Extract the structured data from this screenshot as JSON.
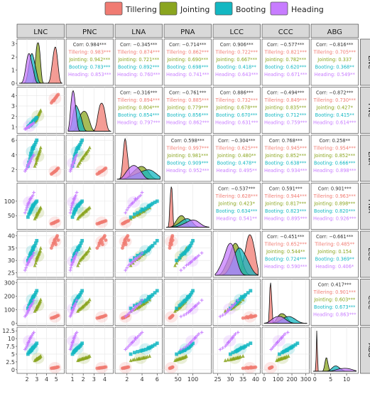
{
  "chart_data": {
    "type": "scatter-matrix",
    "variables": [
      "LNC",
      "PNC",
      "LNA",
      "PNA",
      "LCC",
      "CCC",
      "ABG"
    ],
    "legend": {
      "placement": "top",
      "entries": [
        {
          "name": "Tillering",
          "color": "#f07b72",
          "marker": "circle"
        },
        {
          "name": "Jointing",
          "color": "#8aa51f",
          "marker": "triangle"
        },
        {
          "name": "Booting",
          "color": "#13b7c2",
          "marker": "square"
        },
        {
          "name": "Heading",
          "color": "#c77cff",
          "marker": "plus"
        }
      ]
    },
    "axes": {
      "LNC": {
        "range": [
          1.2,
          5.6
        ],
        "ticks": [
          2,
          3,
          4,
          5
        ],
        "yticks": [
          0,
          1,
          2,
          3
        ]
      },
      "PNC": {
        "range": [
          0.6,
          4.6
        ],
        "ticks": [
          1,
          2,
          3,
          4
        ]
      },
      "LNA": {
        "range": [
          0.7,
          6.4
        ],
        "ticks": [
          2,
          4,
          6
        ]
      },
      "PNA": {
        "range": [
          10,
          155
        ],
        "ticks": [
          50,
          100
        ]
      },
      "LCC": {
        "range": [
          24,
          41
        ],
        "ticks": [
          25,
          30,
          35,
          40
        ]
      },
      "CCC": {
        "range": [
          0,
          310
        ],
        "ticks": [
          0,
          100,
          200,
          300
        ]
      },
      "ABG": {
        "range": [
          -0.5,
          13
        ],
        "ticks": [
          0,
          5,
          10
        ],
        "yticks": [
          0,
          2.5,
          5,
          7.5,
          10,
          12.5
        ]
      }
    },
    "groups": {
      "Tillering": {
        "LNC": [
          4.5,
          4.6,
          4.7,
          4.8,
          4.85,
          4.9,
          5.0,
          5.05,
          5.1,
          5.2,
          4.95,
          4.75
        ],
        "PNC": [
          3.3,
          3.45,
          3.55,
          3.6,
          3.7,
          3.75,
          3.85,
          3.95,
          4.0,
          4.1,
          3.8,
          3.5
        ],
        "LNA": [
          1.4,
          1.5,
          1.6,
          1.7,
          1.75,
          1.8,
          1.9,
          2.0,
          2.1,
          2.2,
          1.85,
          1.65
        ],
        "PNA": [
          22,
          23,
          25,
          26,
          27,
          28,
          29,
          30,
          31,
          32,
          28,
          24
        ],
        "LCC": [
          35,
          36,
          37,
          38,
          38.5,
          37.5,
          39,
          39.5,
          40,
          38.2,
          36.5,
          37
        ],
        "CCC": [
          38,
          40,
          42,
          45,
          46,
          48,
          50,
          52,
          55,
          57,
          47,
          41
        ],
        "ABG": [
          0.45,
          0.5,
          0.55,
          0.6,
          0.62,
          0.65,
          0.7,
          0.75,
          0.8,
          0.85,
          0.68,
          0.52
        ]
      },
      "Jointing": {
        "LNC": [
          2.8,
          2.9,
          2.95,
          3.0,
          3.05,
          3.1,
          3.15,
          3.2,
          3.25,
          3.3,
          3.35,
          3.4,
          3.0,
          3.2
        ],
        "PNC": [
          1.5,
          1.6,
          1.7,
          1.8,
          1.9,
          2.0,
          2.1,
          2.2,
          2.3,
          2.4,
          2.5,
          2.6,
          1.95,
          2.25
        ],
        "LNA": [
          2.5,
          2.8,
          3.0,
          3.3,
          3.5,
          3.7,
          3.9,
          4.1,
          4.3,
          4.5,
          4.7,
          5.0,
          3.6,
          4.2
        ],
        "PNA": [
          40,
          45,
          48,
          52,
          55,
          58,
          62,
          65,
          68,
          72,
          75,
          78,
          57,
          66
        ],
        "LCC": [
          28,
          29,
          30,
          30.5,
          31,
          31.5,
          32,
          32.5,
          33,
          33.5,
          34,
          35,
          31.2,
          32.8
        ],
        "CCC": [
          90,
          100,
          105,
          112,
          118,
          125,
          132,
          140,
          148,
          155,
          162,
          175,
          122,
          145
        ],
        "ABG": [
          3.0,
          3.2,
          3.3,
          3.4,
          3.5,
          3.6,
          3.7,
          3.8,
          3.9,
          4.0,
          4.2,
          4.4,
          3.55,
          3.85
        ]
      },
      "Booting": {
        "LNC": [
          2.1,
          2.2,
          2.3,
          2.35,
          2.4,
          2.5,
          2.55,
          2.6,
          2.7,
          2.8,
          2.9,
          3.0,
          2.45,
          2.65
        ],
        "PNC": [
          1.0,
          1.1,
          1.15,
          1.2,
          1.3,
          1.35,
          1.4,
          1.5,
          1.6,
          1.7,
          1.8,
          1.9,
          1.25,
          1.55
        ],
        "LNA": [
          2.5,
          3.0,
          3.4,
          3.8,
          4.2,
          4.5,
          4.8,
          5.0,
          5.2,
          5.4,
          5.7,
          6.0,
          4.0,
          4.9
        ],
        "PNA": [
          45,
          55,
          60,
          65,
          70,
          75,
          80,
          85,
          88,
          92,
          96,
          100,
          72,
          83
        ],
        "LCC": [
          30,
          31,
          32,
          32.5,
          33,
          33.5,
          34,
          35,
          35.5,
          36,
          37,
          38,
          32.8,
          34.5
        ],
        "CCC": [
          110,
          130,
          140,
          150,
          160,
          170,
          180,
          190,
          200,
          210,
          225,
          240,
          165,
          195
        ],
        "ABG": [
          5.0,
          5.5,
          5.8,
          6.0,
          6.3,
          6.5,
          6.8,
          7.0,
          7.3,
          7.6,
          8.0,
          8.5,
          6.2,
          7.1
        ]
      },
      "Heading": {
        "LNC": [
          1.8,
          1.9,
          2.0,
          2.05,
          2.1,
          2.2,
          2.25,
          2.3,
          2.4,
          2.5,
          2.6,
          2.7,
          2.15,
          2.35
        ],
        "PNC": [
          0.8,
          0.85,
          0.9,
          0.95,
          1.0,
          1.05,
          1.1,
          1.15,
          1.2,
          1.25,
          1.3,
          1.4,
          1.0,
          1.12
        ],
        "LNA": [
          1.8,
          2.0,
          2.2,
          2.4,
          2.6,
          2.8,
          3.0,
          3.2,
          3.4,
          3.6,
          3.8,
          4.0,
          2.7,
          3.1
        ],
        "PNA": [
          60,
          70,
          78,
          85,
          90,
          95,
          100,
          105,
          110,
          115,
          120,
          130,
          93,
          108
        ],
        "LCC": [
          26,
          27,
          28,
          28.5,
          29,
          29.5,
          30,
          30.5,
          31,
          31.5,
          32,
          33,
          29.2,
          30.8
        ],
        "CCC": [
          50,
          60,
          70,
          80,
          90,
          100,
          110,
          120,
          130,
          140,
          150,
          170,
          95,
          125
        ],
        "ABG": [
          6.5,
          7.0,
          7.5,
          8.0,
          8.5,
          9.0,
          9.5,
          10.0,
          10.5,
          11.0,
          11.5,
          12.0,
          8.8,
          10.2
        ]
      }
    },
    "correlations": [
      {
        "row": "LNC",
        "col": "PNC",
        "all": "0.984***",
        "Tillering": "0.983***",
        "Jointing": "0.942***",
        "Booting": "0.783***",
        "Heading": "0.853***"
      },
      {
        "row": "LNC",
        "col": "LNA",
        "all": "−0.345***",
        "Tillering": "0.874***",
        "Jointing": "0.721***",
        "Booting": "0.892***",
        "Heading": "0.760***"
      },
      {
        "row": "LNC",
        "col": "PNA",
        "all": "−0.714***",
        "Tillering": "0.862***",
        "Jointing": "0.690***",
        "Booting": "0.698***",
        "Heading": "0.741***"
      },
      {
        "row": "LNC",
        "col": "LCC",
        "all": "0.906***",
        "Tillering": "0.722***",
        "Jointing": "0.667***",
        "Booting": "0.418**",
        "Heading": "0.643***"
      },
      {
        "row": "LNC",
        "col": "CCC",
        "all": "−0.577***",
        "Tillering": "0.821***",
        "Jointing": "0.782***",
        "Booting": "0.620***",
        "Heading": "0.671***"
      },
      {
        "row": "LNC",
        "col": "ABG",
        "all": "−0.816***",
        "Tillering": "0.705***",
        "Jointing": "0.337",
        "Booting": "0.368**",
        "Heading": "0.549**"
      },
      {
        "row": "PNC",
        "col": "LNA",
        "all": "−0.316***",
        "Tillering": "0.894***",
        "Jointing": "0.804***",
        "Booting": "0.854***",
        "Heading": "0.797***"
      },
      {
        "row": "PNC",
        "col": "PNA",
        "all": "−0.761***",
        "Tillering": "0.885***",
        "Jointing": "0.779***",
        "Booting": "0.856***",
        "Heading": "0.862***"
      },
      {
        "row": "PNC",
        "col": "LCC",
        "all": "0.886***",
        "Tillering": "0.732***",
        "Jointing": "0.678***",
        "Booting": "0.670***",
        "Heading": "0.631***"
      },
      {
        "row": "PNC",
        "col": "CCC",
        "all": "−0.494***",
        "Tillering": "0.849***",
        "Jointing": "0.835***",
        "Booting": "0.712***",
        "Heading": "0.759***"
      },
      {
        "row": "PNC",
        "col": "ABG",
        "all": "−0.872***",
        "Tillering": "0.730***",
        "Jointing": "0.427*",
        "Booting": "0.415**",
        "Heading": "0.614***"
      },
      {
        "row": "LNA",
        "col": "PNA",
        "all": "0.598***",
        "Tillering": "0.997***",
        "Jointing": "0.981***",
        "Booting": "0.909***",
        "Heading": "0.952***"
      },
      {
        "row": "LNA",
        "col": "LCC",
        "all": "−0.304***",
        "Tillering": "0.625***",
        "Jointing": "0.480**",
        "Booting": "0.478**",
        "Heading": "0.495**"
      },
      {
        "row": "LNA",
        "col": "CCC",
        "all": "0.768***",
        "Tillering": "0.945***",
        "Jointing": "0.852***",
        "Booting": "0.638***",
        "Heading": "0.934***"
      },
      {
        "row": "LNA",
        "col": "ABG",
        "all": "0.258**",
        "Tillering": "0.954***",
        "Jointing": "0.852***",
        "Booting": "0.666***",
        "Heading": "0.898***"
      },
      {
        "row": "PNA",
        "col": "LCC",
        "all": "−0.537***",
        "Tillering": "0.628***",
        "Jointing": "0.423*",
        "Booting": "0.634***",
        "Heading": "0.541**"
      },
      {
        "row": "PNA",
        "col": "CCC",
        "all": "0.591***",
        "Tillering": "0.944***",
        "Jointing": "0.817***",
        "Booting": "0.823***",
        "Heading": "0.895***"
      },
      {
        "row": "PNA",
        "col": "ABG",
        "all": "0.901***",
        "Tillering": "0.963***",
        "Jointing": "0.898***",
        "Booting": "0.820***",
        "Heading": "0.926***"
      },
      {
        "row": "LCC",
        "col": "CCC",
        "all": "−0.451***",
        "Tillering": "0.652***",
        "Jointing": "0.544**",
        "Booting": "0.724***",
        "Heading": "0.590***"
      },
      {
        "row": "LCC",
        "col": "ABG",
        "all": "−0.661***",
        "Tillering": "0.485**",
        "Jointing": "0.154",
        "Booting": "0.369**",
        "Heading": "0.406*"
      },
      {
        "row": "CCC",
        "col": "ABG",
        "all": "0.417***",
        "Tillering": "0.901***",
        "Jointing": "0.603***",
        "Booting": "0.673***",
        "Heading": "0.863***"
      }
    ]
  }
}
